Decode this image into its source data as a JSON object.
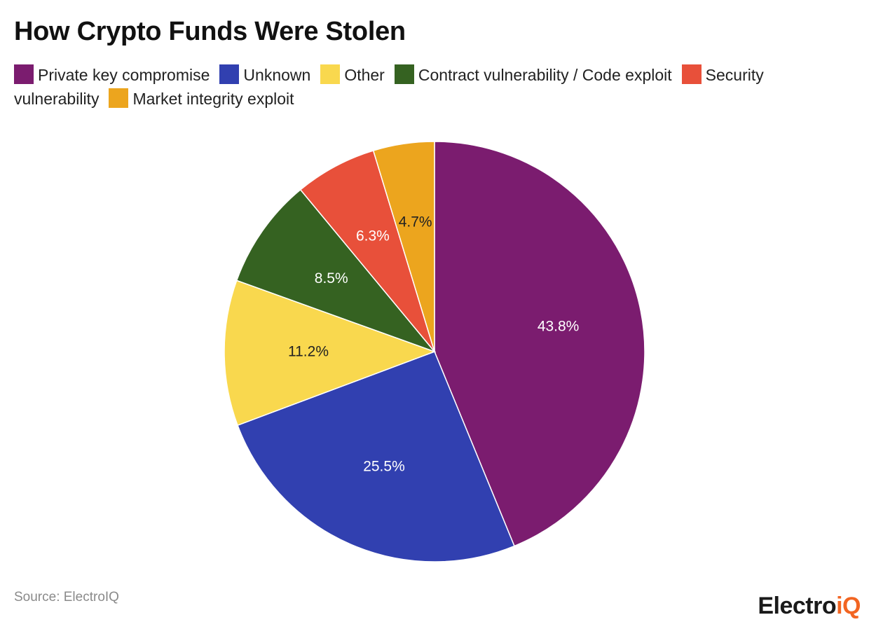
{
  "title": "How Crypto Funds Were Stolen",
  "source": "Source: ElectroIQ",
  "brand": {
    "main": "Electro",
    "accent": "iQ",
    "accent_color": "#f26522"
  },
  "chart_data": {
    "type": "pie",
    "title": "How Crypto Funds Were Stolen",
    "legend_position": "top",
    "start_angle": "12 o'clock, clockwise",
    "slices": [
      {
        "label": "Private key compromise",
        "value": 43.8,
        "display": "43.8%",
        "color": "#7b1c6f",
        "label_color": "#ffffff"
      },
      {
        "label": "Unknown",
        "value": 25.5,
        "display": "25.5%",
        "color": "#3140b0",
        "label_color": "#ffffff"
      },
      {
        "label": "Other",
        "value": 11.2,
        "display": "11.2%",
        "color": "#f9d84e",
        "label_color": "#222222"
      },
      {
        "label": "Contract vulnerability / Code exploit",
        "value": 8.5,
        "display": "8.5%",
        "color": "#356221",
        "label_color": "#ffffff"
      },
      {
        "label": "Security vulnerability",
        "value": 6.3,
        "display": "6.3%",
        "color": "#e8503a",
        "label_color": "#ffffff"
      },
      {
        "label": "Market integrity exploit",
        "value": 4.7,
        "display": "4.7%",
        "color": "#eca51e",
        "label_color": "#222222"
      }
    ]
  }
}
